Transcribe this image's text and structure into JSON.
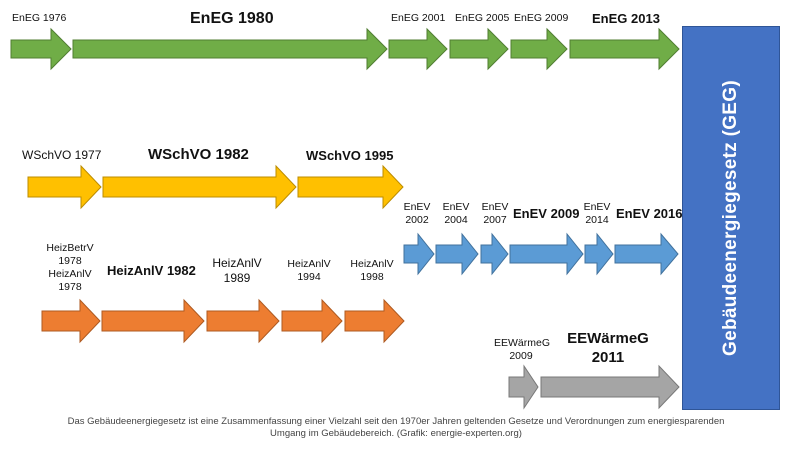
{
  "colors": {
    "green": "#70ad47",
    "green_stroke": "#507e32",
    "yellow": "#ffc000",
    "yellow_stroke": "#bc8c00",
    "orange": "#ed7d31",
    "orange_stroke": "#ae5a21",
    "blue": "#5b9bd5",
    "blue_stroke": "#41719c",
    "gray": "#a5a5a5",
    "gray_stroke": "#787878",
    "geg_box": "#4472c4"
  },
  "eneg": {
    "e1976": "EnEG 1976",
    "e1980": "EnEG 1980",
    "e2001": "EnEG 2001",
    "e2005": "EnEG 2005",
    "e2009": "EnEG 2009",
    "e2013": "EnEG 2013"
  },
  "wschvo": {
    "w1977": "WSchVO 1977",
    "w1982": "WSchVO 1982",
    "w1995": "WSchVO 1995"
  },
  "heiz": {
    "betrv_1": "HeizBetrV",
    "betrv_2": "1978",
    "anlv1978_1": "HeizAnlV",
    "anlv1978_2": "1978",
    "h1982": "HeizAnlV 1982",
    "h1989_1": "HeizAnlV",
    "h1989_2": "1989",
    "h1994_1": "HeizAnlV",
    "h1994_2": "1994",
    "h1998_1": "HeizAnlV",
    "h1998_2": "1998"
  },
  "enev": {
    "v2002_1": "EnEV",
    "v2002_2": "2002",
    "v2004_1": "EnEV",
    "v2004_2": "2004",
    "v2007_1": "EnEV",
    "v2007_2": "2007",
    "v2009": "EnEV 2009",
    "v2014_1": "EnEV",
    "v2014_2": "2014",
    "v2016": "EnEV 2016"
  },
  "eewaermeg": {
    "g2009_1": "EEWärmeG",
    "g2009_2": "2009",
    "g2011_1": "EEWärmeG",
    "g2011_2": "2011"
  },
  "geg": {
    "label": "Gebäudeenergiegesetz (GEG)"
  },
  "caption": {
    "line1": "Das Gebäudeenergiegesetz ist eine Zusammenfassung einer Vielzahl seit den 1970er Jahren geltenden Gesetze und Verordnungen zum energiesparenden",
    "line2": "Umgang im Gebäudebereich. (Grafik: energie-experten.org)"
  }
}
